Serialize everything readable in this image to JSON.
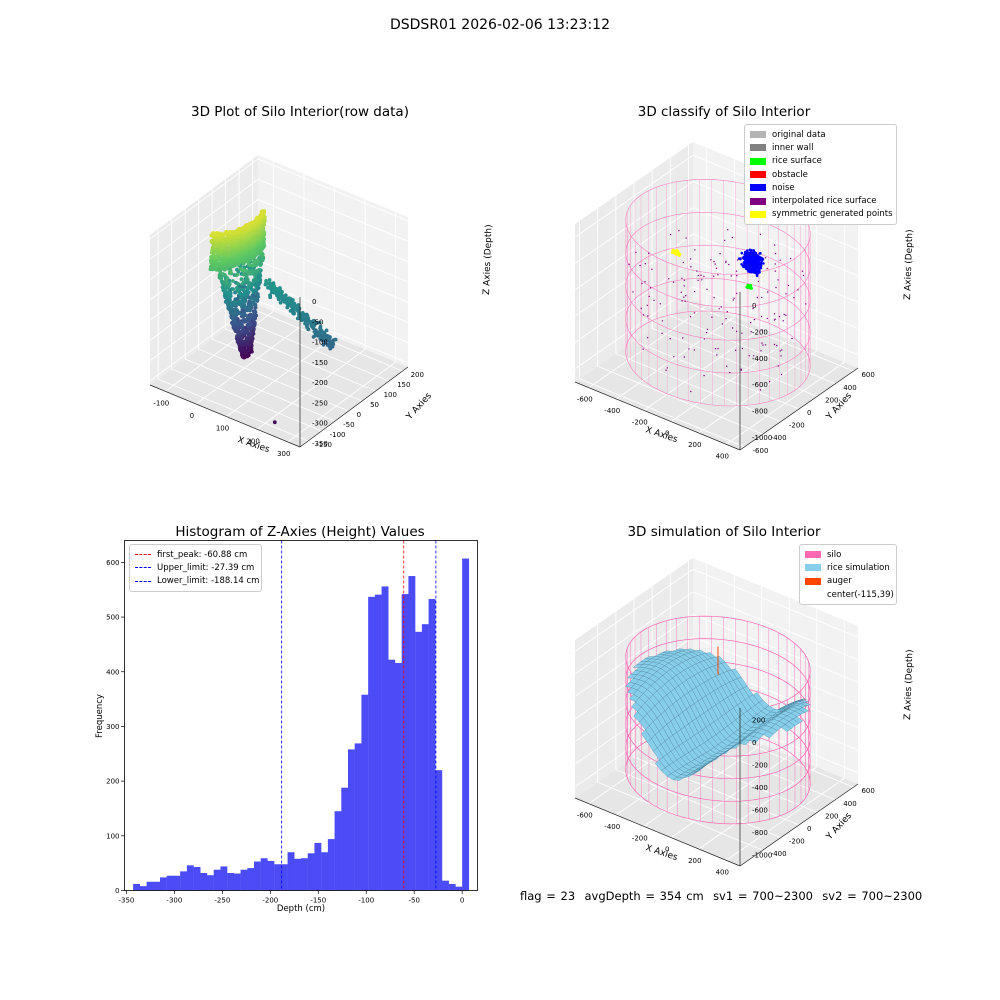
{
  "figure": {
    "suptitle": "DSDSR01 2026-02-06 13:23:12",
    "status": {
      "flag": "flag = 23",
      "avg_depth": "avgDepth = 354 cm",
      "sv1": "sv1 = 700~2300",
      "sv2": "sv2 = 700~2300"
    }
  },
  "colors": {
    "viridis": [
      "#440154",
      "#3b528b",
      "#21918c",
      "#5ec962",
      "#fde725"
    ],
    "pane_left": "#ebebeb",
    "pane_right": "#f2f2f2",
    "pane_floor": "#e6e6e6",
    "hist_bar": "#4c4cf7",
    "first_peak_line": "#ff0000",
    "limit_line": "#0000ff"
  },
  "chart_data": [
    {
      "type": "scatter",
      "projection": "3d",
      "title": "3D Plot of Silo Interior(row data)",
      "xlabel": "X Axies",
      "ylabel": "Y Axies",
      "zlabel": "Z Axies (Depth)",
      "xlim": [
        -150,
        340
      ],
      "ylim": [
        -180,
        220
      ],
      "zlim": [
        -360,
        10
      ],
      "xticks": [
        -100,
        0,
        100,
        200,
        300
      ],
      "yticks": [
        -150,
        -100,
        -50,
        0,
        50,
        100,
        150,
        200
      ],
      "zticks": [
        0,
        -50,
        -100,
        -150,
        -200,
        -250,
        -300,
        -350
      ],
      "colormap": "viridis",
      "colormap_range": [
        -350,
        0
      ],
      "grid": true
    },
    {
      "type": "scatter",
      "projection": "3d",
      "title": "3D classify of Silo Interior",
      "xlabel": "X Axies",
      "ylabel": "Y Axies",
      "zlabel": "Z Axies (Depth)",
      "xlim": [
        -700,
        500
      ],
      "ylim": [
        -650,
        650
      ],
      "zlim": [
        -1100,
        100
      ],
      "xticks": [
        -600,
        -400,
        -200,
        0,
        200,
        400
      ],
      "yticks": [
        -600,
        -400,
        -200,
        0,
        200,
        400,
        600
      ],
      "zticks": [
        0,
        -200,
        -400,
        -600,
        -800,
        -1000
      ],
      "legend": {
        "location": "upper right",
        "entries": [
          {
            "label": "original data",
            "color": "#b4b4b4"
          },
          {
            "label": "inner wall",
            "color": "#808080"
          },
          {
            "label": "rice surface",
            "color": "#00ff00"
          },
          {
            "label": "obstacle",
            "color": "#ff0000"
          },
          {
            "label": "noise",
            "color": "#0000ff"
          },
          {
            "label": "interpolated rice surface",
            "color": "#800080"
          },
          {
            "label": "symmetric generated points",
            "color": "#ffff00"
          }
        ]
      },
      "grid": true
    },
    {
      "type": "bar",
      "title": "Histogram of Z-Axies (Height) Values",
      "xlabel": "Depth (cm)",
      "ylabel": "Frequency",
      "xlim": [
        -352,
        16
      ],
      "ylim": [
        0,
        640
      ],
      "xticks": [
        -350,
        -300,
        -250,
        -200,
        -150,
        -100,
        -50,
        0
      ],
      "yticks": [
        0,
        100,
        200,
        300,
        400,
        500,
        600
      ],
      "bin_width": 7.0,
      "bin_edges_start": -343,
      "values": [
        12,
        8,
        16,
        16,
        24,
        27,
        27,
        35,
        46,
        43,
        32,
        28,
        38,
        44,
        32,
        31,
        38,
        41,
        53,
        59,
        54,
        48,
        48,
        70,
        58,
        59,
        68,
        87,
        70,
        94,
        145,
        188,
        258,
        269,
        358,
        537,
        541,
        556,
        422,
        416,
        542,
        575,
        473,
        487,
        533,
        220,
        18,
        12,
        7,
        607
      ],
      "lines": [
        {
          "label": "first_peak: -60.88 cm",
          "x": -60.88,
          "color": "#ff0000"
        },
        {
          "label": "Upper_limit: -27.39 cm",
          "x": -27.39,
          "color": "#0000ff"
        },
        {
          "label": "Lower_limit: -188.14 cm",
          "x": -188.14,
          "color": "#0000ff"
        }
      ],
      "legend": {
        "location": "upper left"
      },
      "grid": false
    },
    {
      "type": "surface",
      "projection": "3d",
      "title": "3D simulation of Silo Interior",
      "xlabel": "X Axies",
      "ylabel": "Y Axies",
      "zlabel": "Z Axies (Depth)",
      "xlim": [
        -700,
        500
      ],
      "ylim": [
        -650,
        650
      ],
      "zlim": [
        -1100,
        300
      ],
      "xticks": [
        -600,
        -400,
        -200,
        0,
        200,
        400
      ],
      "yticks": [
        -400,
        -200,
        0,
        200,
        400,
        600
      ],
      "zticks": [
        200,
        0,
        -200,
        -400,
        -600,
        -800,
        -1000
      ],
      "legend": {
        "location": "upper right",
        "entries": [
          {
            "label": "silo",
            "color": "#ff69b4"
          },
          {
            "label": "rice simulation",
            "color": "#87ceeb"
          },
          {
            "label": "auger",
            "color": "#ff4500"
          },
          {
            "label": "center(-115,39)",
            "color": "none"
          }
        ]
      },
      "grid": true
    }
  ]
}
